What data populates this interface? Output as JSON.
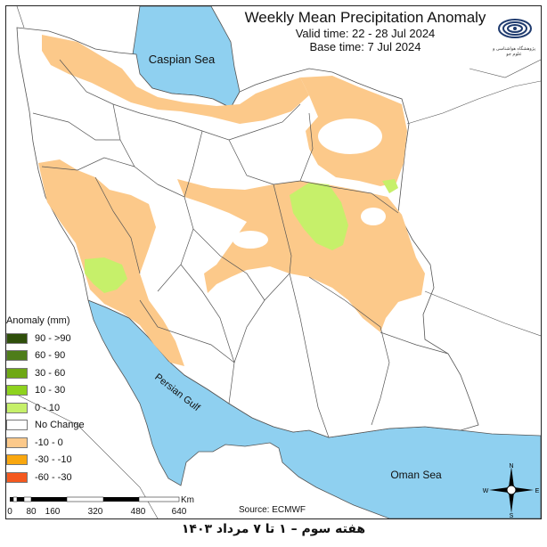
{
  "map": {
    "title": "Weekly Mean Precipitation Anomaly",
    "valid_time": "Valid time: 22 - 28 Jul 2024",
    "base_time": "Base time: 7 Jul 2024",
    "source": "Source: ECMWF",
    "footer": "هفته سوم – ۱ تا ۷ مرداد ۱۴۰۳",
    "water_labels": {
      "caspian": "Caspian Sea",
      "persian_gulf": "Persian Gulf",
      "oman": "Oman Sea"
    },
    "colors": {
      "water": "#8fd0f0",
      "land": "#ffffff",
      "orange_light": "#fcc98a",
      "green_light": "#c6f06a",
      "border": "#555555"
    }
  },
  "legend": {
    "title": "Anomaly (mm)",
    "items": [
      {
        "label": "90 - >90",
        "color": "#2f4f0a"
      },
      {
        "label": "60 - 90",
        "color": "#4e7d1a"
      },
      {
        "label": "30 - 60",
        "color": "#6ea814"
      },
      {
        "label": "10 - 30",
        "color": "#8ed21e"
      },
      {
        "label": "0 - 10",
        "color": "#c6f06a"
      },
      {
        "label": "No Change",
        "color": "#ffffff"
      },
      {
        "label": "-10 - 0",
        "color": "#fcc98a"
      },
      {
        "label": "-30 - -10",
        "color": "#f9a70f"
      },
      {
        "label": "-60 - -30",
        "color": "#f4581e"
      }
    ]
  },
  "scale": {
    "unit": "Km",
    "ticks": [
      "0",
      "80",
      "160",
      "320",
      "480",
      "640"
    ]
  },
  "compass": {
    "n": "N",
    "s": "S",
    "e": "E",
    "w": "W"
  },
  "logo": {
    "text": "پژوهشگاه هواشناسی و علوم جو"
  }
}
